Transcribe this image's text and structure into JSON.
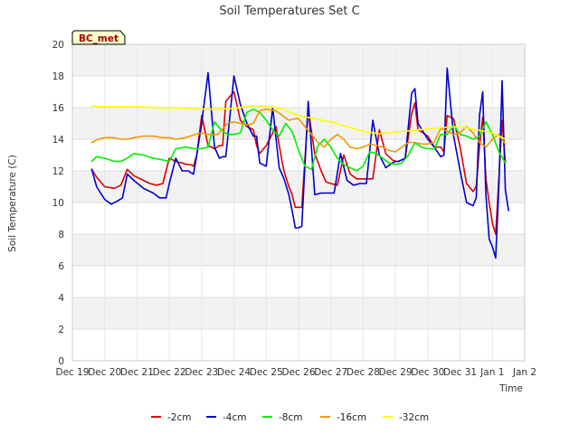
{
  "chart_data": {
    "type": "line",
    "title": "Soil Temperatures Set C",
    "xlabel": "Time",
    "ylabel": "Soil Temperature (C)",
    "station_label": "BC_met",
    "xlim": [
      0,
      14
    ],
    "ylim": [
      0,
      20
    ],
    "x_tick_values": [
      0,
      1,
      2,
      3,
      4,
      5,
      6,
      7,
      8,
      9,
      10,
      11,
      12,
      13,
      14
    ],
    "x_tick_labels": [
      "Dec 19",
      "Dec 20",
      "Dec 21",
      "Dec 22",
      "Dec 23",
      "Dec 24",
      "Dec 25",
      "Dec 26",
      "Dec 27",
      "Dec 28",
      "Dec 29",
      "Dec 30",
      "Dec 31",
      "Jan 1",
      "Jan 2"
    ],
    "y_ticks": [
      0,
      2,
      4,
      6,
      8,
      10,
      12,
      14,
      16,
      18,
      20
    ],
    "legend_position": "bottom",
    "series": [
      {
        "name": "-2cm",
        "color": "#dd0000",
        "x": [
          0.6,
          0.75,
          1.0,
          1.3,
          1.5,
          1.7,
          1.9,
          2.2,
          2.4,
          2.6,
          2.8,
          3.0,
          3.2,
          3.4,
          3.55,
          3.65,
          3.75,
          3.85,
          4.0,
          4.2,
          4.4,
          4.55,
          4.65,
          4.75,
          5.0,
          5.2,
          5.4,
          5.6,
          5.7,
          5.8,
          6.0,
          6.3,
          6.5,
          6.55,
          6.7,
          6.8,
          6.9,
          7.1,
          7.3,
          7.5,
          7.7,
          7.85,
          8.0,
          8.2,
          8.4,
          8.6,
          8.8,
          8.95,
          9.1,
          9.3,
          9.5,
          9.7,
          9.9,
          10.0,
          10.1,
          10.3,
          10.5,
          10.6,
          10.7,
          11.0,
          11.2,
          11.4,
          11.5,
          11.6,
          11.8,
          12.0,
          12.2,
          12.4,
          12.5,
          12.6,
          12.7,
          12.8,
          12.9,
          13.0,
          13.1,
          13.2,
          13.3,
          13.4
        ],
        "y": [
          12.1,
          11.6,
          11.0,
          10.9,
          11.1,
          12.1,
          11.7,
          11.4,
          11.2,
          11.1,
          11.2,
          12.8,
          12.6,
          12.5,
          12.4,
          12.4,
          12.3,
          13.0,
          15.5,
          13.6,
          13.4,
          13.6,
          13.6,
          16.4,
          17.0,
          15.2,
          14.8,
          14.6,
          13.6,
          13.1,
          13.6,
          14.8,
          12.5,
          12.0,
          11.0,
          10.5,
          9.7,
          9.7,
          15.9,
          13.1,
          12.0,
          11.3,
          11.2,
          11.1,
          13.0,
          11.8,
          11.5,
          11.5,
          11.5,
          11.5,
          14.6,
          13.1,
          12.7,
          12.6,
          12.6,
          12.8,
          15.6,
          16.3,
          14.6,
          14.2,
          13.5,
          13.5,
          13.2,
          15.5,
          15.3,
          13.5,
          11.2,
          10.7,
          11.0,
          13.5,
          15.4,
          11.5,
          10.0,
          8.7,
          8.0,
          11.5,
          15.2,
          12.5
        ]
      },
      {
        "name": "-4cm",
        "color": "#0000cc",
        "x": [
          0.6,
          0.75,
          1.0,
          1.2,
          1.4,
          1.55,
          1.7,
          1.9,
          2.2,
          2.5,
          2.7,
          2.9,
          3.0,
          3.2,
          3.4,
          3.6,
          3.65,
          3.75,
          3.85,
          4.0,
          4.2,
          4.4,
          4.55,
          4.65,
          4.75,
          5.0,
          5.2,
          5.4,
          5.6,
          5.7,
          5.8,
          6.0,
          6.2,
          6.4,
          6.55,
          6.7,
          6.8,
          6.9,
          7.0,
          7.1,
          7.3,
          7.5,
          7.7,
          7.9,
          8.1,
          8.3,
          8.5,
          8.7,
          8.9,
          9.1,
          9.3,
          9.5,
          9.7,
          9.9,
          10.0,
          10.1,
          10.3,
          10.5,
          10.6,
          10.7,
          11.0,
          11.2,
          11.4,
          11.5,
          11.6,
          11.8,
          12.0,
          12.2,
          12.4,
          12.5,
          12.6,
          12.7,
          12.8,
          12.9,
          13.0,
          13.1,
          13.2,
          13.3,
          13.4,
          13.5
        ],
        "y": [
          12.1,
          11.0,
          10.2,
          9.9,
          10.1,
          10.3,
          11.8,
          11.4,
          10.9,
          10.6,
          10.3,
          10.3,
          11.2,
          12.8,
          12.0,
          12.0,
          11.9,
          11.8,
          13.0,
          15.0,
          18.2,
          13.5,
          12.8,
          12.9,
          12.9,
          18.0,
          16.2,
          15.0,
          14.2,
          14.2,
          12.5,
          12.3,
          16.0,
          12.2,
          11.5,
          10.5,
          9.5,
          8.4,
          8.4,
          8.5,
          16.4,
          10.5,
          10.6,
          10.6,
          10.6,
          13.1,
          11.4,
          11.1,
          11.2,
          11.2,
          15.2,
          13.0,
          12.2,
          12.5,
          12.6,
          12.6,
          12.8,
          16.9,
          17.2,
          15.0,
          14.0,
          13.5,
          12.9,
          13.0,
          18.5,
          14.2,
          12.0,
          10.0,
          9.8,
          10.3,
          15.5,
          17.0,
          10.5,
          7.7,
          7.2,
          6.5,
          11.0,
          17.7,
          10.8,
          9.5
        ]
      },
      {
        "name": "-8cm",
        "color": "#00ee00",
        "x": [
          0.6,
          0.75,
          1.0,
          1.3,
          1.5,
          1.7,
          1.9,
          2.2,
          2.5,
          2.8,
          3.0,
          3.2,
          3.5,
          3.8,
          4.0,
          4.2,
          4.4,
          4.6,
          4.8,
          5.0,
          5.2,
          5.4,
          5.6,
          5.8,
          6.0,
          6.2,
          6.4,
          6.6,
          6.8,
          7.0,
          7.2,
          7.4,
          7.6,
          7.8,
          8.0,
          8.2,
          8.4,
          8.6,
          8.8,
          9.0,
          9.2,
          9.4,
          9.6,
          9.8,
          10.0,
          10.2,
          10.4,
          10.6,
          10.8,
          11.0,
          11.2,
          11.4,
          11.6,
          11.8,
          12.0,
          12.2,
          12.4,
          12.6,
          12.8,
          13.0,
          13.2,
          13.4
        ],
        "y": [
          12.6,
          12.9,
          12.8,
          12.6,
          12.6,
          12.8,
          13.1,
          13.0,
          12.8,
          12.7,
          12.6,
          13.4,
          13.5,
          13.4,
          13.4,
          13.5,
          15.1,
          14.6,
          14.3,
          14.3,
          14.4,
          15.7,
          15.9,
          15.7,
          15.2,
          14.6,
          14.2,
          15.0,
          14.5,
          13.3,
          12.3,
          12.1,
          13.6,
          14.0,
          13.5,
          12.8,
          12.4,
          12.2,
          12.0,
          12.3,
          13.2,
          13.1,
          12.8,
          12.5,
          12.4,
          12.5,
          13.0,
          13.8,
          13.5,
          13.4,
          13.4,
          14.3,
          14.3,
          14.9,
          14.3,
          14.2,
          14.0,
          14.2,
          15.1,
          14.3,
          13.2,
          12.5
        ]
      },
      {
        "name": "-16cm",
        "color": "#ee9900",
        "x": [
          0.6,
          0.8,
          1.0,
          1.3,
          1.5,
          1.7,
          1.9,
          2.2,
          2.5,
          2.8,
          3.0,
          3.2,
          3.5,
          3.8,
          4.0,
          4.2,
          4.5,
          4.8,
          5.0,
          5.2,
          5.4,
          5.6,
          5.8,
          6.0,
          6.3,
          6.5,
          6.7,
          6.9,
          7.0,
          7.2,
          7.4,
          7.6,
          7.8,
          8.0,
          8.2,
          8.4,
          8.6,
          8.8,
          9.0,
          9.2,
          9.4,
          9.6,
          9.8,
          10.0,
          10.2,
          10.4,
          10.6,
          10.8,
          11.0,
          11.2,
          11.4,
          11.6,
          11.8,
          12.0,
          12.2,
          12.4,
          12.6,
          12.8,
          13.0,
          13.2,
          13.4
        ],
        "y": [
          13.8,
          14.0,
          14.1,
          14.1,
          14.0,
          14.0,
          14.1,
          14.2,
          14.2,
          14.1,
          14.1,
          14.0,
          14.1,
          14.3,
          14.4,
          14.3,
          14.3,
          15.0,
          15.1,
          15.0,
          14.9,
          15.0,
          15.8,
          15.9,
          15.8,
          15.5,
          15.2,
          15.3,
          15.3,
          14.8,
          14.3,
          13.8,
          13.5,
          14.0,
          14.3,
          14.0,
          13.5,
          13.4,
          13.5,
          13.7,
          13.6,
          13.5,
          13.3,
          13.2,
          13.5,
          13.8,
          13.8,
          13.7,
          13.7,
          13.8,
          14.7,
          14.5,
          14.3,
          14.4,
          14.8,
          14.4,
          13.8,
          13.5,
          14.0,
          14.3,
          13.7
        ]
      },
      {
        "name": "-32cm",
        "color": "#ffff00",
        "x": [
          0.6,
          1.0,
          1.5,
          2.0,
          2.5,
          3.0,
          3.5,
          4.0,
          4.5,
          5.0,
          5.5,
          6.0,
          6.5,
          7.0,
          7.5,
          8.0,
          8.5,
          9.0,
          9.5,
          10.0,
          10.5,
          11.0,
          11.5,
          12.0,
          12.5,
          13.0,
          13.4
        ],
        "y": [
          16.1,
          16.05,
          16.05,
          16.05,
          16.0,
          16.0,
          15.95,
          15.9,
          15.9,
          15.95,
          16.1,
          16.1,
          15.9,
          15.5,
          15.3,
          15.1,
          14.8,
          14.5,
          14.35,
          14.45,
          14.55,
          14.65,
          14.75,
          14.8,
          14.6,
          14.4,
          14.0
        ]
      }
    ]
  }
}
